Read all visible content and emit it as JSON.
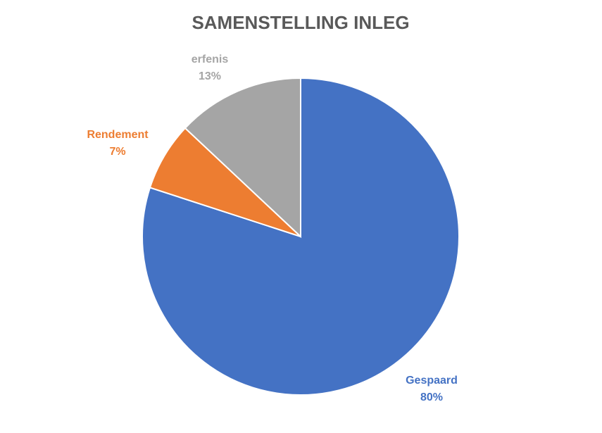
{
  "chart_data": {
    "type": "pie",
    "title": "SAMENSTELLING INLEG",
    "categories": [
      "Gespaard",
      "Rendement",
      "erfenis"
    ],
    "values": [
      80,
      7,
      13
    ],
    "labels_pct": [
      "80%",
      "7%",
      "13%"
    ],
    "colors": [
      "#4472C4",
      "#ED7D31",
      "#A5A5A5"
    ],
    "start": "12 o'clock",
    "direction": "clockwise",
    "legend": "none",
    "data_labels": "category name and percentage, outside end"
  }
}
